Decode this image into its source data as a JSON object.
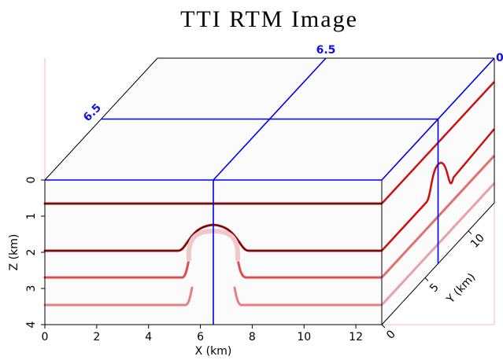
{
  "chart_data": {
    "type": "cube3d",
    "title": "TTI RTM Image",
    "xlabel": "X (km)",
    "ylabel": "Y (km)",
    "zlabel": "Z (km)",
    "xlim": [
      0,
      13
    ],
    "xticks": [
      0,
      2,
      4,
      6,
      8,
      10,
      12
    ],
    "ylim": [
      0,
      13
    ],
    "yticks": [
      0,
      5,
      10
    ],
    "zlim": [
      0,
      4
    ],
    "zticks": [
      0,
      1,
      2,
      3,
      4
    ],
    "slices": {
      "x": 6.5,
      "y": 6.5,
      "z": 0
    },
    "slice_color": "#0000ee"
  }
}
